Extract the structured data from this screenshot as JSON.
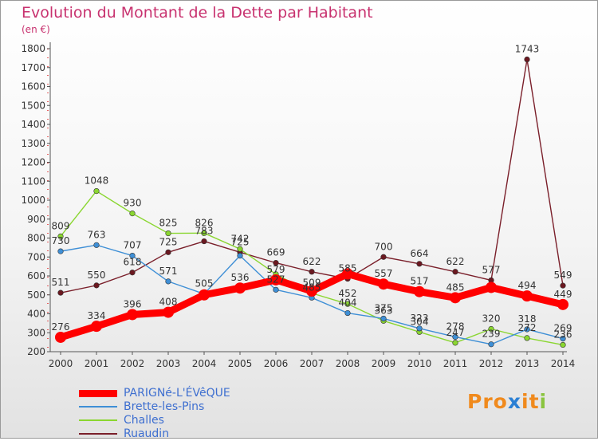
{
  "chart_data": {
    "type": "line",
    "title": "Evolution du Montant de la Dette par Habitant",
    "ylabel": "(en €)",
    "ylim": [
      200,
      1800
    ],
    "yticks": [
      200,
      300,
      400,
      500,
      600,
      700,
      800,
      900,
      1000,
      1100,
      1200,
      1300,
      1400,
      1500,
      1600,
      1700,
      1800
    ],
    "x": [
      "2000",
      "2001",
      "2002",
      "2003",
      "2004",
      "2005",
      "2006",
      "2007",
      "2008",
      "2009",
      "2010",
      "2011",
      "2012",
      "2013",
      "2014"
    ],
    "grid": false,
    "legend_position": "bottom-left",
    "series": [
      {
        "name": "PARIGNé-L'ÉVêQUE",
        "color": "#ff0000",
        "values": [
          276,
          334,
          396,
          408,
          500,
          536,
          579,
          520,
          611,
          557,
          517,
          485,
          539,
          494,
          449
        ],
        "labels": [
          "276",
          "334",
          "396",
          "408",
          "",
          "536",
          "579",
          "",
          "",
          "557",
          "517",
          "485",
          "",
          "494",
          "449"
        ]
      },
      {
        "name": "Brette-les-Pins",
        "color": "#3e8fd6",
        "values": [
          730,
          763,
          707,
          571,
          505,
          707,
          527,
          485,
          404,
          375,
          323,
          278,
          239,
          318,
          269
        ],
        "labels": [
          "730",
          "763",
          "707",
          "571",
          "505",
          "",
          "527",
          "485",
          "404",
          "375",
          "323",
          "278",
          "239",
          "318",
          "269"
        ]
      },
      {
        "name": "Challes",
        "color": "#8ad630",
        "values": [
          809,
          1048,
          930,
          825,
          826,
          742,
          609,
          509,
          452,
          363,
          304,
          247,
          320,
          272,
          236
        ],
        "labels": [
          "809",
          "1048",
          "930",
          "825",
          "826",
          "742",
          "",
          "509",
          "452",
          "363",
          "304",
          "247",
          "320",
          "272",
          "236"
        ]
      },
      {
        "name": "Ruaudin",
        "color": "#7a1f2a",
        "values": [
          511,
          550,
          618,
          725,
          783,
          725,
          669,
          622,
          585,
          700,
          664,
          622,
          577,
          1743,
          549
        ],
        "labels": [
          "511",
          "550",
          "618",
          "725",
          "783",
          "725",
          "669",
          "622",
          "585",
          "700",
          "664",
          "622",
          "577",
          "1743",
          "549"
        ]
      }
    ]
  },
  "brand": {
    "logo_letters": [
      "Pr",
      "o",
      "x",
      "i",
      "t",
      "i"
    ]
  }
}
